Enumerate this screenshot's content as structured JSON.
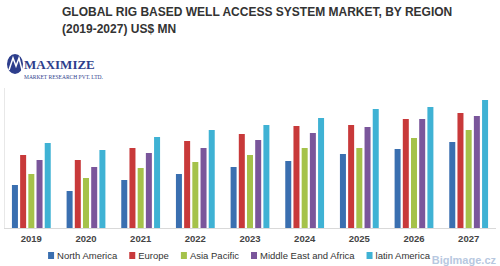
{
  "chart_data": {
    "type": "bar",
    "title": "GLOBAL RIG BASED WELL ACCESS SYSTEM MARKET, BY REGION",
    "subtitle": "(2019-2027) US$ MN",
    "logo": {
      "name": "MAXIMIZE",
      "tagline": "MARKET RESEARCH PVT. LTD."
    },
    "watermark": "BigImage.cz",
    "categories": [
      "2019",
      "2020",
      "2021",
      "2022",
      "2023",
      "2024",
      "2025",
      "2026",
      "2027"
    ],
    "series": [
      {
        "name": "North America",
        "color": "#3a6fb0",
        "values": [
          43,
          37,
          48,
          54,
          61,
          67,
          74,
          79,
          86
        ]
      },
      {
        "name": "Europe",
        "color": "#c8393a",
        "values": [
          73,
          68,
          80,
          87,
          94,
          102,
          103,
          109,
          115
        ]
      },
      {
        "name": "Asia Pacific",
        "color": "#a5c24a",
        "values": [
          54,
          50,
          60,
          66,
          73,
          80,
          80,
          90,
          98
        ]
      },
      {
        "name": "Middle East and Africa",
        "color": "#7a569b",
        "values": [
          68,
          61,
          75,
          80,
          88,
          95,
          101,
          109,
          112
        ]
      },
      {
        "name": "latin America",
        "color": "#3fb2d4",
        "values": [
          85,
          78,
          91,
          98,
          103,
          110,
          119,
          121,
          128
        ]
      }
    ],
    "ylim": [
      0,
      140
    ],
    "tick_labels": "x",
    "legend": "bottom",
    "grid": false
  }
}
